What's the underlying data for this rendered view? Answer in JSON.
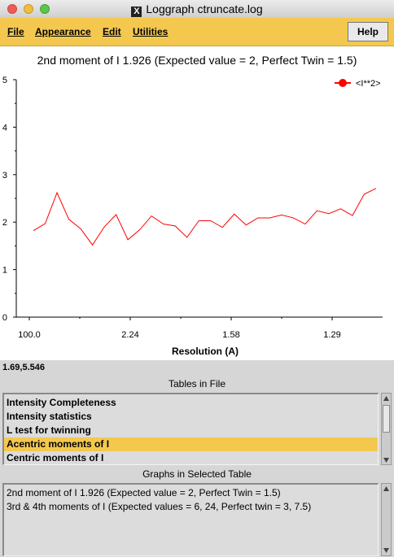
{
  "window": {
    "title": "Loggraph ctruncate.log",
    "x_glyph": "X"
  },
  "menu": {
    "file": "File",
    "appearance": "Appearance",
    "edit": "Edit",
    "utilities": "Utilities",
    "help": "Help"
  },
  "graph": {
    "title": "2nd moment of I 1.926 (Expected value = 2, Perfect Twin = 1.5)"
  },
  "chart_data": {
    "type": "line",
    "title": "2nd moment of I 1.926 (Expected value = 2, Perfect Twin = 1.5)",
    "xlabel": "Resolution (A)",
    "ylabel": "",
    "x_tick_labels": [
      "100.0",
      "2.24",
      "1.58",
      "1.29"
    ],
    "y_ticks": [
      0,
      1,
      2,
      3,
      4,
      5
    ],
    "ylim": [
      0,
      5
    ],
    "legend_position": "top-right",
    "series": [
      {
        "name": "<I**2>",
        "color": "#ff0000",
        "values": [
          1.82,
          1.97,
          2.62,
          2.06,
          1.86,
          1.52,
          1.9,
          2.16,
          1.63,
          1.84,
          2.13,
          1.96,
          1.92,
          1.68,
          2.03,
          2.03,
          1.89,
          2.17,
          1.94,
          2.09,
          2.09,
          2.15,
          2.09,
          1.96,
          2.24,
          2.18,
          2.28,
          2.14,
          2.59,
          2.71
        ]
      }
    ]
  },
  "coords_readout": "1.69,5.546",
  "tables": {
    "title": "Tables in File",
    "items": [
      "Intensity Completeness",
      "Intensity statistics",
      "L test for twinning",
      "Acentric moments of I",
      "Centric moments of I"
    ],
    "selected_index": 3
  },
  "graphs_list": {
    "title": "Graphs in Selected Table",
    "items": [
      "2nd moment of I 1.926 (Expected value = 2, Perfect Twin = 1.5)",
      "3rd & 4th moments of I (Expected values = 6, 24, Perfect twin = 3, 7.5)"
    ]
  }
}
